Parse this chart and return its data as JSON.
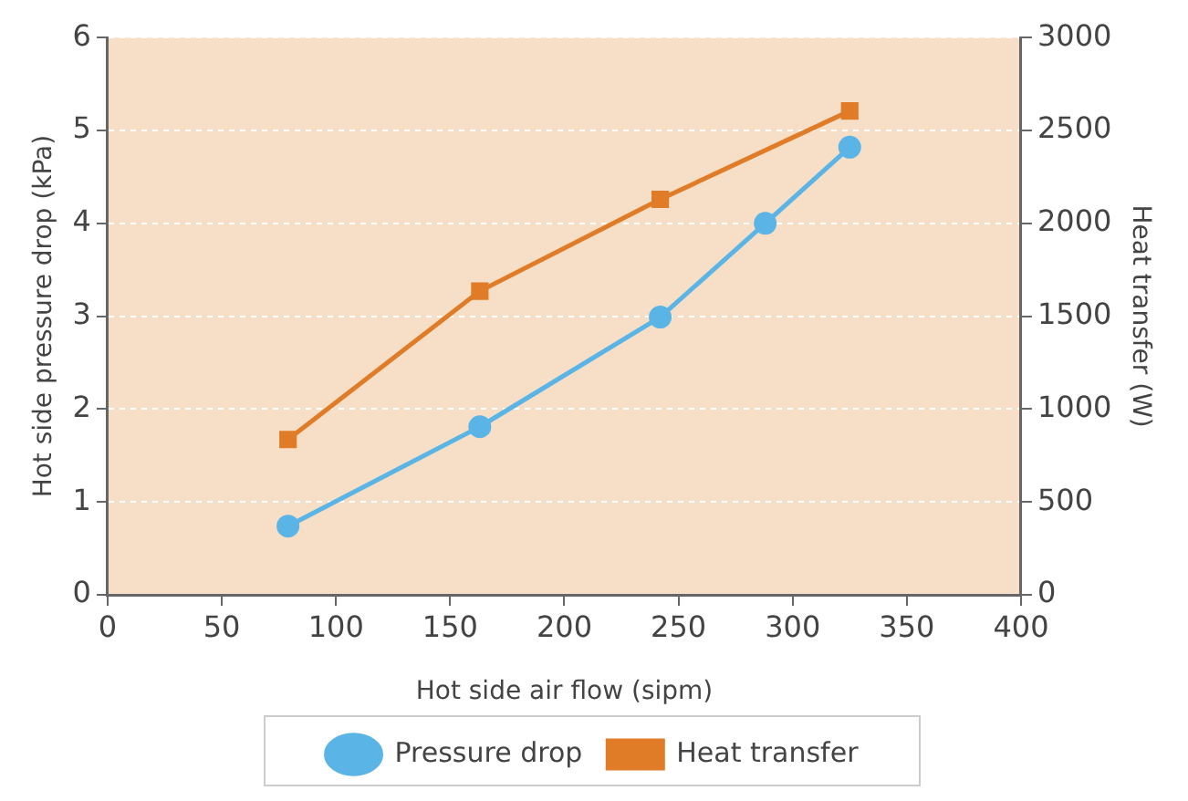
{
  "chart_data": {
    "type": "line",
    "xlabel": "Hot side air flow (sipm)",
    "ylabel": "Hot side pressure drop (kPa)",
    "y2label": "Heat transfer (W)",
    "series": [
      {
        "name": "Pressure drop",
        "color": "#5ab4e5",
        "marker": "circle",
        "x": [
          79,
          163,
          242,
          288,
          325
        ],
        "values": [
          0.74,
          1.81,
          2.99,
          4.0,
          4.82
        ]
      },
      {
        "name": "Heat transfer",
        "color": "#e07b27",
        "marker": "square",
        "axis": "y2",
        "x": [
          79,
          163,
          242,
          325
        ],
        "values": [
          836,
          1635,
          2129,
          2605
        ]
      }
    ],
    "xlim": [
      0,
      400
    ],
    "xticks": [
      0,
      50,
      100,
      150,
      200,
      250,
      300,
      350,
      400
    ],
    "ylim": [
      0,
      6
    ],
    "yticks": [
      0,
      1,
      2,
      3,
      4,
      5,
      6
    ],
    "y2lim": [
      0,
      3000
    ],
    "y2ticks": [
      0,
      500,
      1000,
      1500,
      2000,
      2500,
      3000
    ],
    "grid": "y",
    "legend": "bottom"
  }
}
